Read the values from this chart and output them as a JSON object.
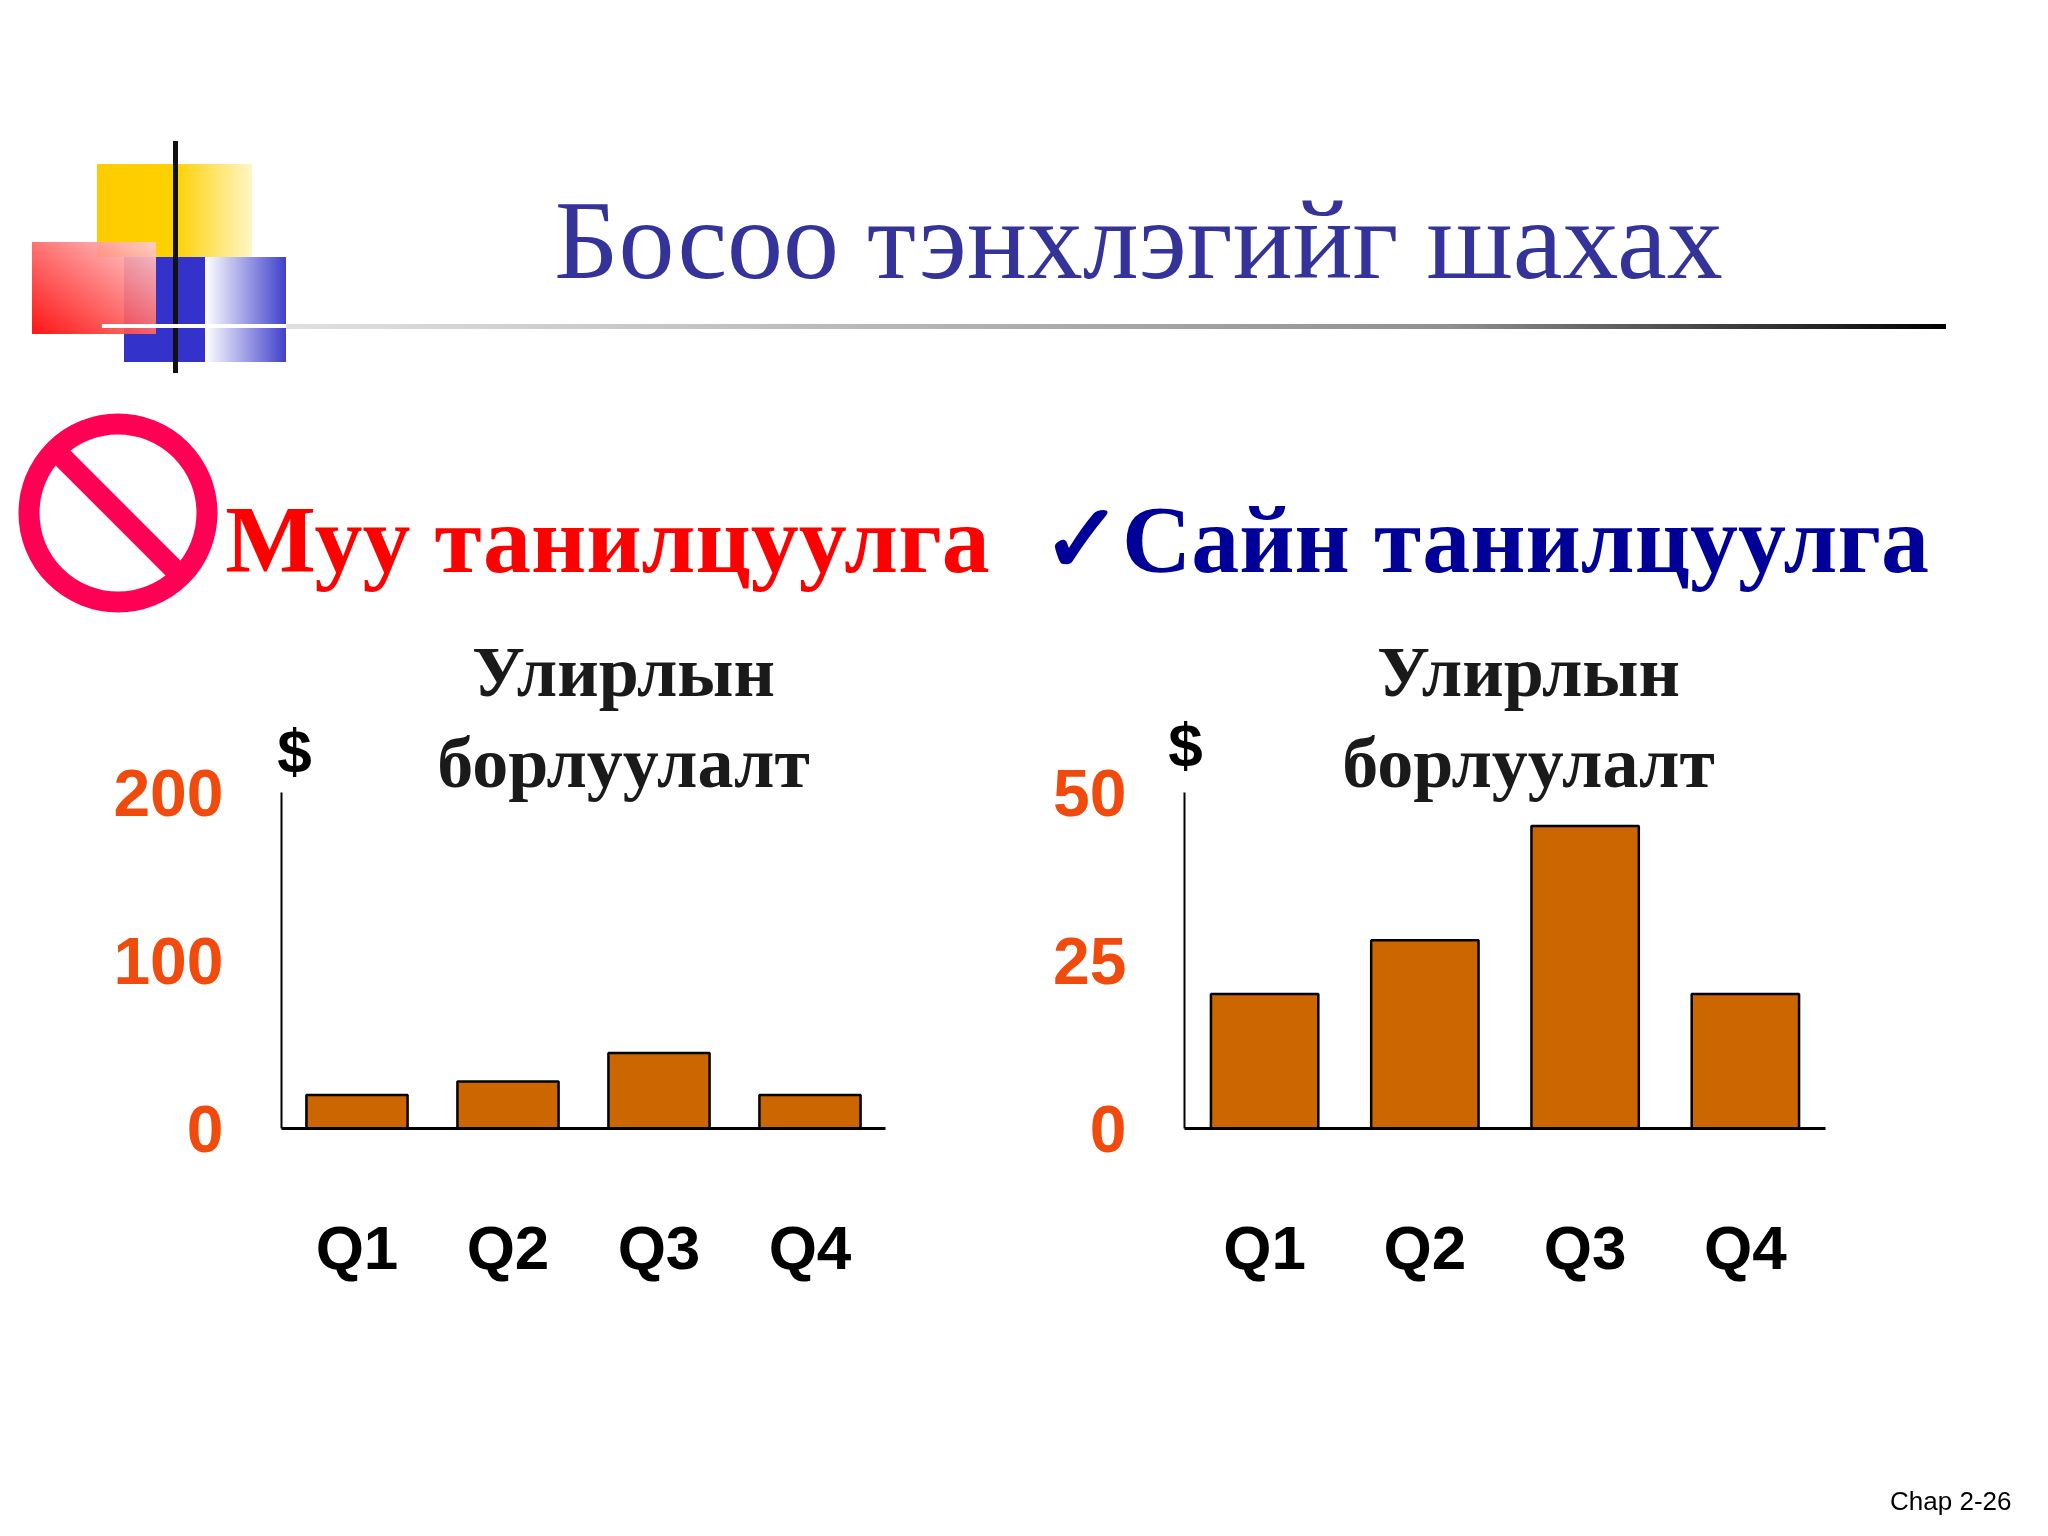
{
  "chart_data": [
    {
      "type": "other",
      "title": "Босоо тэнхлэгийг шахах"
    },
    {
      "type": "bar",
      "subtitle": "Муу танилцуулга",
      "title": "Улирлын борлуулалт",
      "ylabel": "$",
      "categories": [
        "Q1",
        "Q2",
        "Q3",
        "Q4"
      ],
      "values": [
        20,
        28,
        45,
        20
      ],
      "color": "#cc6600",
      "ylim": [
        0,
        200
      ],
      "yticks": [
        0,
        100,
        200
      ]
    },
    {
      "type": "bar",
      "subtitle": "✓Сайн танилцуулга",
      "title": "Улирлын борлуулалт",
      "ylabel": "$",
      "categories": [
        "Q1",
        "Q2",
        "Q3",
        "Q4"
      ],
      "values": [
        20,
        28,
        45,
        20
      ],
      "color": "#cc6600",
      "ylim": [
        0,
        50
      ],
      "yticks": [
        0,
        25,
        50
      ],
      "annotations": [
        "Chap 2-26"
      ]
    }
  ]
}
